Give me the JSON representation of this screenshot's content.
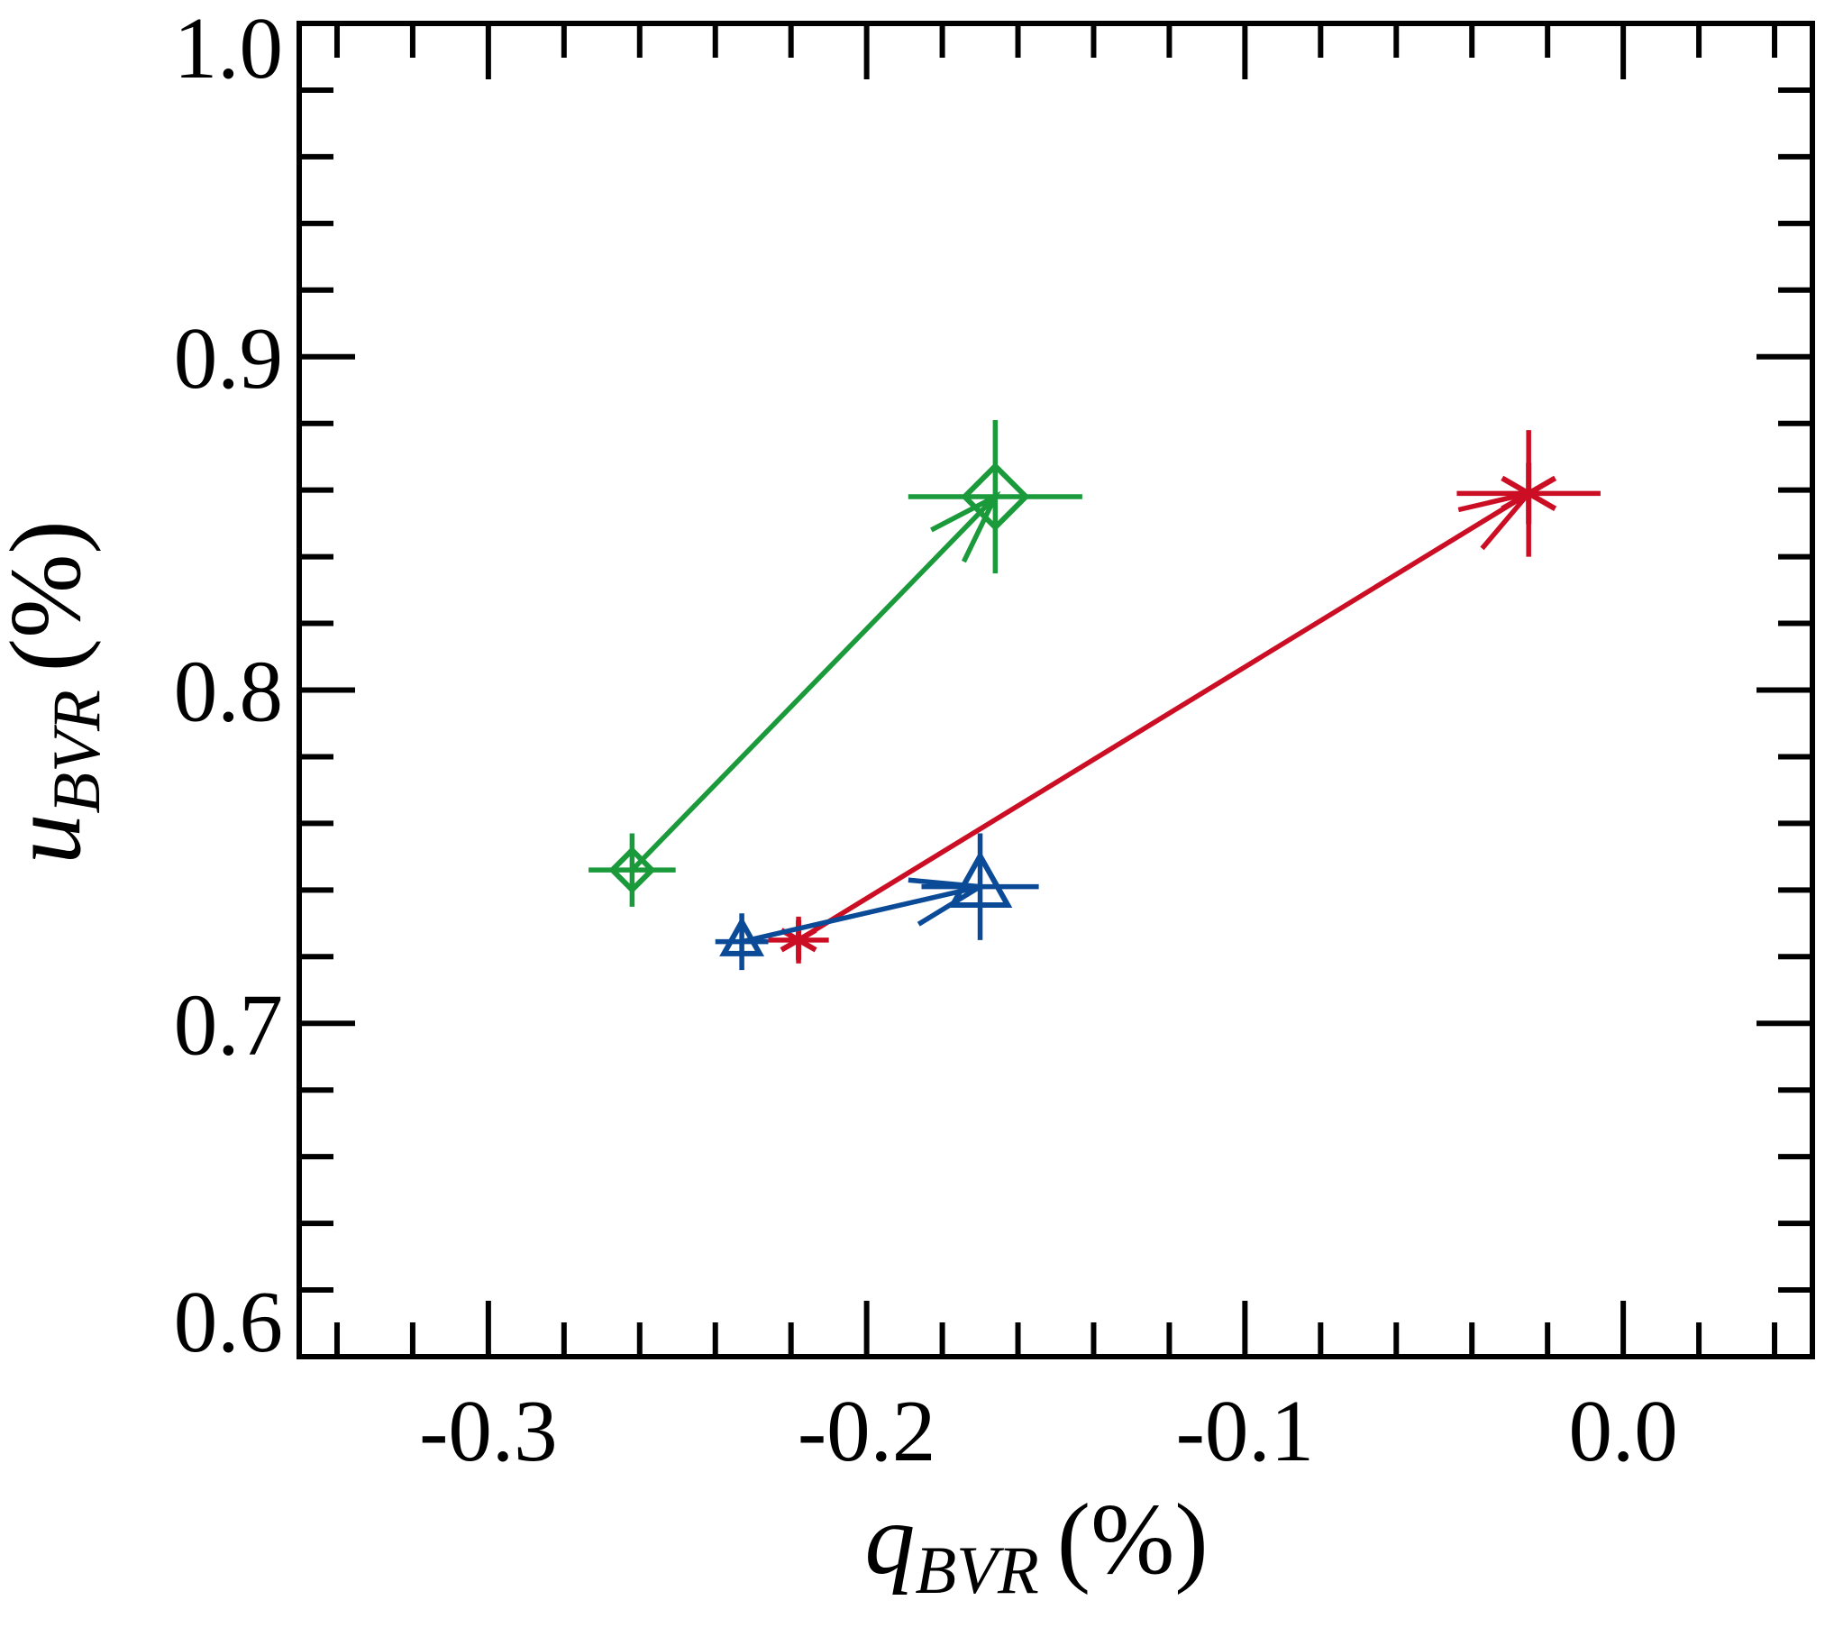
{
  "chart_data": {
    "type": "scatter",
    "xlabel": {
      "symbol": "q",
      "subscript": "BVR",
      "unit": "(%)"
    },
    "ylabel": {
      "symbol": "u",
      "subscript": "BVR",
      "unit": "(%)"
    },
    "xlim": [
      -0.35,
      0.05
    ],
    "ylim": [
      0.6,
      1.0
    ],
    "xticks": [
      -0.3,
      -0.2,
      -0.1,
      {
        "value": 0,
        "label": "0.0"
      }
    ],
    "yticks": [
      0.6,
      0.7,
      0.8,
      0.9,
      {
        "value": 1,
        "label": "1.0"
      }
    ],
    "xminorticks": [
      -0.34,
      -0.32,
      -0.28,
      -0.26,
      -0.24,
      -0.22,
      -0.18,
      -0.16,
      -0.14,
      -0.12,
      -0.08,
      -0.06,
      -0.04,
      -0.02,
      0.02,
      0.04
    ],
    "yminorticks": [
      0.62,
      0.64,
      0.66,
      0.68,
      0.72,
      0.74,
      0.76,
      0.78,
      0.82,
      0.84,
      0.86,
      0.88,
      0.92,
      0.94,
      0.96,
      0.98
    ],
    "series": [
      {
        "color": "#1a9a3a",
        "marker": "diamond",
        "x": [
          -0.262,
          -0.166
        ],
        "y": [
          0.746,
          0.858
        ],
        "xerr": [
          0.0115,
          0.023
        ],
        "yerr": [
          0.011,
          0.023
        ]
      },
      {
        "color": "#cc0e25",
        "marker": "asterisk",
        "x": [
          -0.218,
          -0.025
        ],
        "y": [
          0.725,
          0.859
        ],
        "xerr": [
          0.008,
          0.019
        ],
        "yerr": [
          0.007,
          0.019
        ]
      },
      {
        "color": "#0a4a96",
        "marker": "triangle",
        "x": [
          -0.233,
          -0.17
        ],
        "y": [
          0.7245,
          0.741
        ],
        "xerr": [
          0.007,
          0.0155
        ],
        "yerr": [
          0.0085,
          0.016
        ]
      }
    ]
  }
}
